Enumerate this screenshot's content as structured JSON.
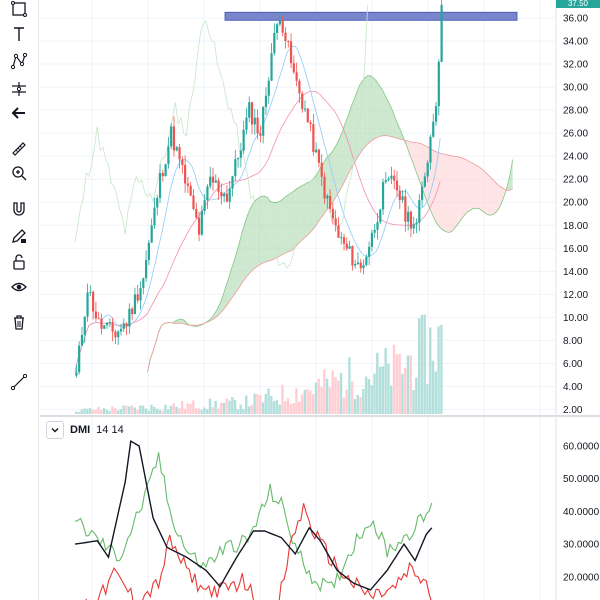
{
  "toolbar": {
    "icons": [
      "square-select-icon",
      "text-tool-icon",
      "node-tool-icon",
      "measure-tool-icon",
      "back-arrow-icon",
      "ruler-icon",
      "zoom-in-icon",
      "magnet-icon",
      "lock-pencil-icon",
      "unlock-icon",
      "eye-icon",
      "trash-icon",
      "trendline-icon"
    ]
  },
  "price_badge": "37.50",
  "indicator": {
    "name": "DMI",
    "params": "14 14"
  },
  "colors": {
    "up": "#26a69a",
    "down": "#ef5350",
    "cloud_green": "#a5d6a7",
    "cloud_red": "#ffcdd2",
    "dmi_plus": "#66bb6a",
    "dmi_minus": "#e53935",
    "adx": "#131722",
    "resistance": "#7986cb"
  },
  "chart_data": [
    {
      "type": "candlestick",
      "title": "",
      "ylim": [
        1.5,
        38.2
      ],
      "y_ticks": [
        "2.00",
        "4.00",
        "6.00",
        "8.00",
        "10.00",
        "12.00",
        "14.00",
        "16.00",
        "18.00",
        "20.00",
        "22.00",
        "24.00",
        "26.00",
        "28.00",
        "30.00",
        "32.00",
        "34.00",
        "36.00"
      ],
      "resistance_band": {
        "y_low": 35.8,
        "y_high": 36.5
      },
      "grid": true,
      "price_path": [
        [
          0,
          5.0
        ],
        [
          4,
          12.6
        ],
        [
          8,
          9.4
        ],
        [
          14,
          8.6
        ],
        [
          18,
          9.6
        ],
        [
          24,
          13.5
        ],
        [
          30,
          22
        ],
        [
          34,
          26
        ],
        [
          40,
          21
        ],
        [
          44,
          17.5
        ],
        [
          48,
          22
        ],
        [
          54,
          20.5
        ],
        [
          58,
          24
        ],
        [
          62,
          28
        ],
        [
          66,
          26
        ],
        [
          70,
          33
        ],
        [
          73,
          36.5
        ],
        [
          78,
          31
        ],
        [
          82,
          28
        ],
        [
          86,
          24
        ],
        [
          90,
          20
        ],
        [
          94,
          17
        ],
        [
          98,
          15.5
        ],
        [
          102,
          14.2
        ],
        [
          106,
          17
        ],
        [
          110,
          21
        ],
        [
          114,
          22
        ],
        [
          118,
          19
        ],
        [
          122,
          18
        ],
        [
          126,
          24
        ],
        [
          129,
          29
        ],
        [
          131,
          36.5
        ]
      ],
      "volume_ylim": [
        0,
        12.5
      ],
      "volume_profile": [
        [
          0,
          0.5
        ],
        [
          30,
          1.0
        ],
        [
          60,
          1.5
        ],
        [
          80,
          3.0
        ],
        [
          100,
          5.0
        ],
        [
          115,
          6.0
        ],
        [
          125,
          8.5
        ],
        [
          131,
          10.0
        ]
      ]
    },
    {
      "type": "line",
      "title": "DMI 14 14",
      "ylim": [
        10.0,
        65.0
      ],
      "y_ticks": [
        "20.0000",
        "30.0000",
        "40.0000",
        "50.0000",
        "60.0000"
      ],
      "grid": true,
      "series": [
        {
          "key": "plus",
          "values": [
            [
              0,
              37
            ],
            [
              10,
              30
            ],
            [
              16,
              26
            ],
            [
              26,
              46
            ],
            [
              30,
              57
            ],
            [
              34,
              40
            ],
            [
              40,
              28
            ],
            [
              46,
              23
            ],
            [
              54,
              29
            ],
            [
              62,
              31
            ],
            [
              70,
              46
            ],
            [
              74,
              42
            ],
            [
              80,
              27
            ],
            [
              86,
              19
            ],
            [
              92,
              16
            ],
            [
              100,
              30
            ],
            [
              106,
              38
            ],
            [
              112,
              28
            ],
            [
              118,
              32
            ],
            [
              124,
              37
            ],
            [
              128,
              41
            ]
          ]
        },
        {
          "key": "minus",
          "values": [
            [
              0,
              10
            ],
            [
              10,
              15
            ],
            [
              14,
              21
            ],
            [
              18,
              17
            ],
            [
              22,
              12
            ],
            [
              30,
              18
            ],
            [
              34,
              31
            ],
            [
              40,
              22
            ],
            [
              46,
              16
            ],
            [
              54,
              16
            ],
            [
              60,
              19
            ],
            [
              66,
              12
            ],
            [
              72,
              8
            ],
            [
              78,
              32
            ],
            [
              82,
              41
            ],
            [
              86,
              33
            ],
            [
              92,
              25
            ],
            [
              98,
              19
            ],
            [
              106,
              14
            ],
            [
              114,
              16
            ],
            [
              120,
              22
            ],
            [
              126,
              18
            ],
            [
              128,
              13
            ]
          ]
        },
        {
          "key": "adx",
          "values": [
            [
              0,
              30
            ],
            [
              8,
              31
            ],
            [
              12,
              26
            ],
            [
              18,
              49
            ],
            [
              20,
              61.5
            ],
            [
              23,
              60
            ],
            [
              28,
              38
            ],
            [
              33,
              29
            ],
            [
              40,
              26
            ],
            [
              47,
              22
            ],
            [
              52,
              17
            ],
            [
              58,
              26
            ],
            [
              64,
              34
            ],
            [
              68,
              34
            ],
            [
              74,
              32
            ],
            [
              79,
              27
            ],
            [
              84,
              35
            ],
            [
              88,
              31
            ],
            [
              94,
              22
            ],
            [
              100,
              18
            ],
            [
              106,
              16
            ],
            [
              112,
              22
            ],
            [
              118,
              30
            ],
            [
              122,
              25
            ],
            [
              126,
              33
            ],
            [
              128,
              35
            ]
          ]
        }
      ]
    }
  ]
}
